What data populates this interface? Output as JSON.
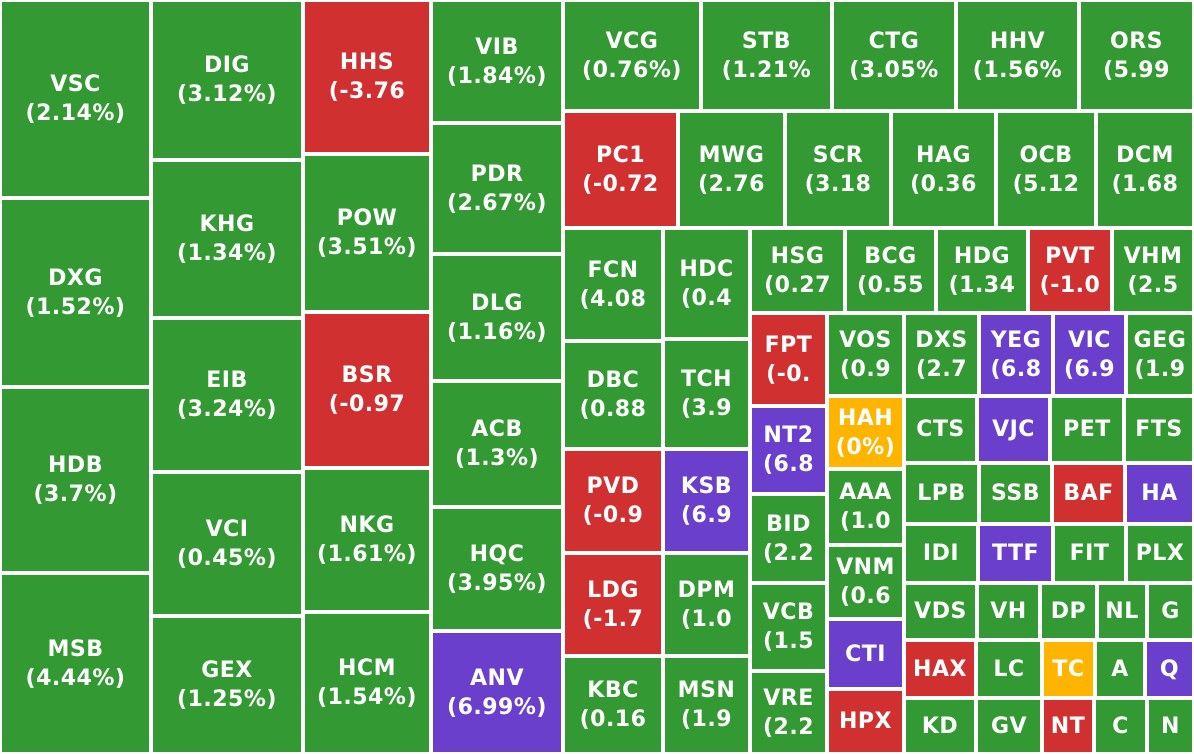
{
  "colors": {
    "up": "#339933",
    "down": "#d13030",
    "ceiling": "#6a3fcc",
    "flat": "#ffb500",
    "border": "#ffffff"
  },
  "chart_data": {
    "type": "treemap",
    "items": [
      {
        "symbol": "VSC",
        "change": "(2.14%)",
        "status": "up"
      },
      {
        "symbol": "DXG",
        "change": "(1.52%)",
        "status": "up"
      },
      {
        "symbol": "HDB",
        "change": "(3.7%)",
        "status": "up"
      },
      {
        "symbol": "MSB",
        "change": "(4.44%)",
        "status": "up"
      },
      {
        "symbol": "DIG",
        "change": "(3.12%)",
        "status": "up"
      },
      {
        "symbol": "KHG",
        "change": "(1.34%)",
        "status": "up"
      },
      {
        "symbol": "EIB",
        "change": "(3.24%)",
        "status": "up"
      },
      {
        "symbol": "VCI",
        "change": "(0.45%)",
        "status": "up"
      },
      {
        "symbol": "GEX",
        "change": "(1.25%)",
        "status": "up"
      },
      {
        "symbol": "HHS",
        "change": "(-3.76",
        "status": "down"
      },
      {
        "symbol": "POW",
        "change": "(3.51%)",
        "status": "up"
      },
      {
        "symbol": "BSR",
        "change": "(-0.97",
        "status": "down"
      },
      {
        "symbol": "NKG",
        "change": "(1.61%)",
        "status": "up"
      },
      {
        "symbol": "HCM",
        "change": "(1.54%)",
        "status": "up"
      },
      {
        "symbol": "VIB",
        "change": "(1.84%)",
        "status": "up"
      },
      {
        "symbol": "PDR",
        "change": "(2.67%)",
        "status": "up"
      },
      {
        "symbol": "DLG",
        "change": "(1.16%)",
        "status": "up"
      },
      {
        "symbol": "ACB",
        "change": "(1.3%)",
        "status": "up"
      },
      {
        "symbol": "HQC",
        "change": "(3.95%)",
        "status": "up"
      },
      {
        "symbol": "ANV",
        "change": "(6.99%)",
        "status": "ceiling"
      },
      {
        "symbol": "VCG",
        "change": "(0.76%)",
        "status": "up"
      },
      {
        "symbol": "STB",
        "change": "(1.21%",
        "status": "up"
      },
      {
        "symbol": "CTG",
        "change": "(3.05%",
        "status": "up"
      },
      {
        "symbol": "HHV",
        "change": "(1.56%",
        "status": "up"
      },
      {
        "symbol": "ORS",
        "change": "(5.99",
        "status": "up"
      },
      {
        "symbol": "PC1",
        "change": "(-0.72",
        "status": "down"
      },
      {
        "symbol": "MWG",
        "change": "(2.76",
        "status": "up"
      },
      {
        "symbol": "SCR",
        "change": "(3.18",
        "status": "up"
      },
      {
        "symbol": "HAG",
        "change": "(0.36",
        "status": "up"
      },
      {
        "symbol": "OCB",
        "change": "(5.12",
        "status": "up"
      },
      {
        "symbol": "DCM",
        "change": "(1.68",
        "status": "up"
      },
      {
        "symbol": "FCN",
        "change": "(4.08",
        "status": "up"
      },
      {
        "symbol": "DBC",
        "change": "(0.88",
        "status": "up"
      },
      {
        "symbol": "PVD",
        "change": "(-0.9",
        "status": "down"
      },
      {
        "symbol": "LDG",
        "change": "(-1.7",
        "status": "down"
      },
      {
        "symbol": "KBC",
        "change": "(0.16",
        "status": "up"
      },
      {
        "symbol": "HDC",
        "change": "(0.4",
        "status": "up"
      },
      {
        "symbol": "TCH",
        "change": "(3.9",
        "status": "up"
      },
      {
        "symbol": "KSB",
        "change": "(6.9",
        "status": "ceiling"
      },
      {
        "symbol": "DPM",
        "change": "(1.0",
        "status": "up"
      },
      {
        "symbol": "MSN",
        "change": "(1.9",
        "status": "up"
      },
      {
        "symbol": "HSG",
        "change": "(0.27",
        "status": "up"
      },
      {
        "symbol": "BCG",
        "change": "(0.55",
        "status": "up"
      },
      {
        "symbol": "HDG",
        "change": "(1.34",
        "status": "up"
      },
      {
        "symbol": "PVT",
        "change": "(-1.0",
        "status": "down"
      },
      {
        "symbol": "VHM",
        "change": "(2.5",
        "status": "up"
      },
      {
        "symbol": "FPT",
        "change": "(-0.",
        "status": "down"
      },
      {
        "symbol": "NT2",
        "change": "(6.8",
        "status": "ceiling"
      },
      {
        "symbol": "BID",
        "change": "(2.2",
        "status": "up"
      },
      {
        "symbol": "VCB",
        "change": "(1.5",
        "status": "up"
      },
      {
        "symbol": "VRE",
        "change": "(2.2",
        "status": "up"
      },
      {
        "symbol": "VOS",
        "change": "(0.9",
        "status": "up"
      },
      {
        "symbol": "HAH",
        "change": "(0%)",
        "status": "flat"
      },
      {
        "symbol": "AAA",
        "change": "(1.0",
        "status": "up"
      },
      {
        "symbol": "VNM",
        "change": "(0.6",
        "status": "up"
      },
      {
        "symbol": "CTI",
        "change": "",
        "status": "ceiling"
      },
      {
        "symbol": "HPX",
        "change": "",
        "status": "down"
      },
      {
        "symbol": "DXS",
        "change": "(2.7",
        "status": "up"
      },
      {
        "symbol": "YEG",
        "change": "(6.8",
        "status": "ceiling"
      },
      {
        "symbol": "VIC",
        "change": "(6.9",
        "status": "ceiling"
      },
      {
        "symbol": "GEG",
        "change": "(1.9",
        "status": "up"
      },
      {
        "symbol": "CTS",
        "change": "",
        "status": "up"
      },
      {
        "symbol": "VJC",
        "change": "",
        "status": "ceiling"
      },
      {
        "symbol": "PET",
        "change": "",
        "status": "up"
      },
      {
        "symbol": "FTS",
        "change": "",
        "status": "up"
      },
      {
        "symbol": "LPB",
        "change": "",
        "status": "up"
      },
      {
        "symbol": "SSB",
        "change": "",
        "status": "up"
      },
      {
        "symbol": "BAF",
        "change": "",
        "status": "down"
      },
      {
        "symbol": "HA",
        "change": "",
        "status": "ceiling"
      },
      {
        "symbol": "IDI",
        "change": "",
        "status": "up"
      },
      {
        "symbol": "TTF",
        "change": "",
        "status": "ceiling"
      },
      {
        "symbol": "FIT",
        "change": "",
        "status": "up"
      },
      {
        "symbol": "PLX",
        "change": "",
        "status": "up"
      },
      {
        "symbol": "VDS",
        "change": "",
        "status": "up"
      },
      {
        "symbol": "VH",
        "change": "",
        "status": "up"
      },
      {
        "symbol": "DP",
        "change": "",
        "status": "up"
      },
      {
        "symbol": "NL",
        "change": "",
        "status": "up"
      },
      {
        "symbol": "G",
        "change": "",
        "status": "up"
      },
      {
        "symbol": "HAX",
        "change": "",
        "status": "down"
      },
      {
        "symbol": "LC",
        "change": "",
        "status": "up"
      },
      {
        "symbol": "TC",
        "change": "",
        "status": "flat"
      },
      {
        "symbol": "A",
        "change": "",
        "status": "up"
      },
      {
        "symbol": "Q",
        "change": "",
        "status": "ceiling"
      },
      {
        "symbol": "KD",
        "change": "",
        "status": "up"
      },
      {
        "symbol": "GV",
        "change": "",
        "status": "up"
      },
      {
        "symbol": "NT",
        "change": "",
        "status": "down"
      },
      {
        "symbol": "C",
        "change": "",
        "status": "up"
      },
      {
        "symbol": "N",
        "change": "",
        "status": "up"
      }
    ]
  }
}
